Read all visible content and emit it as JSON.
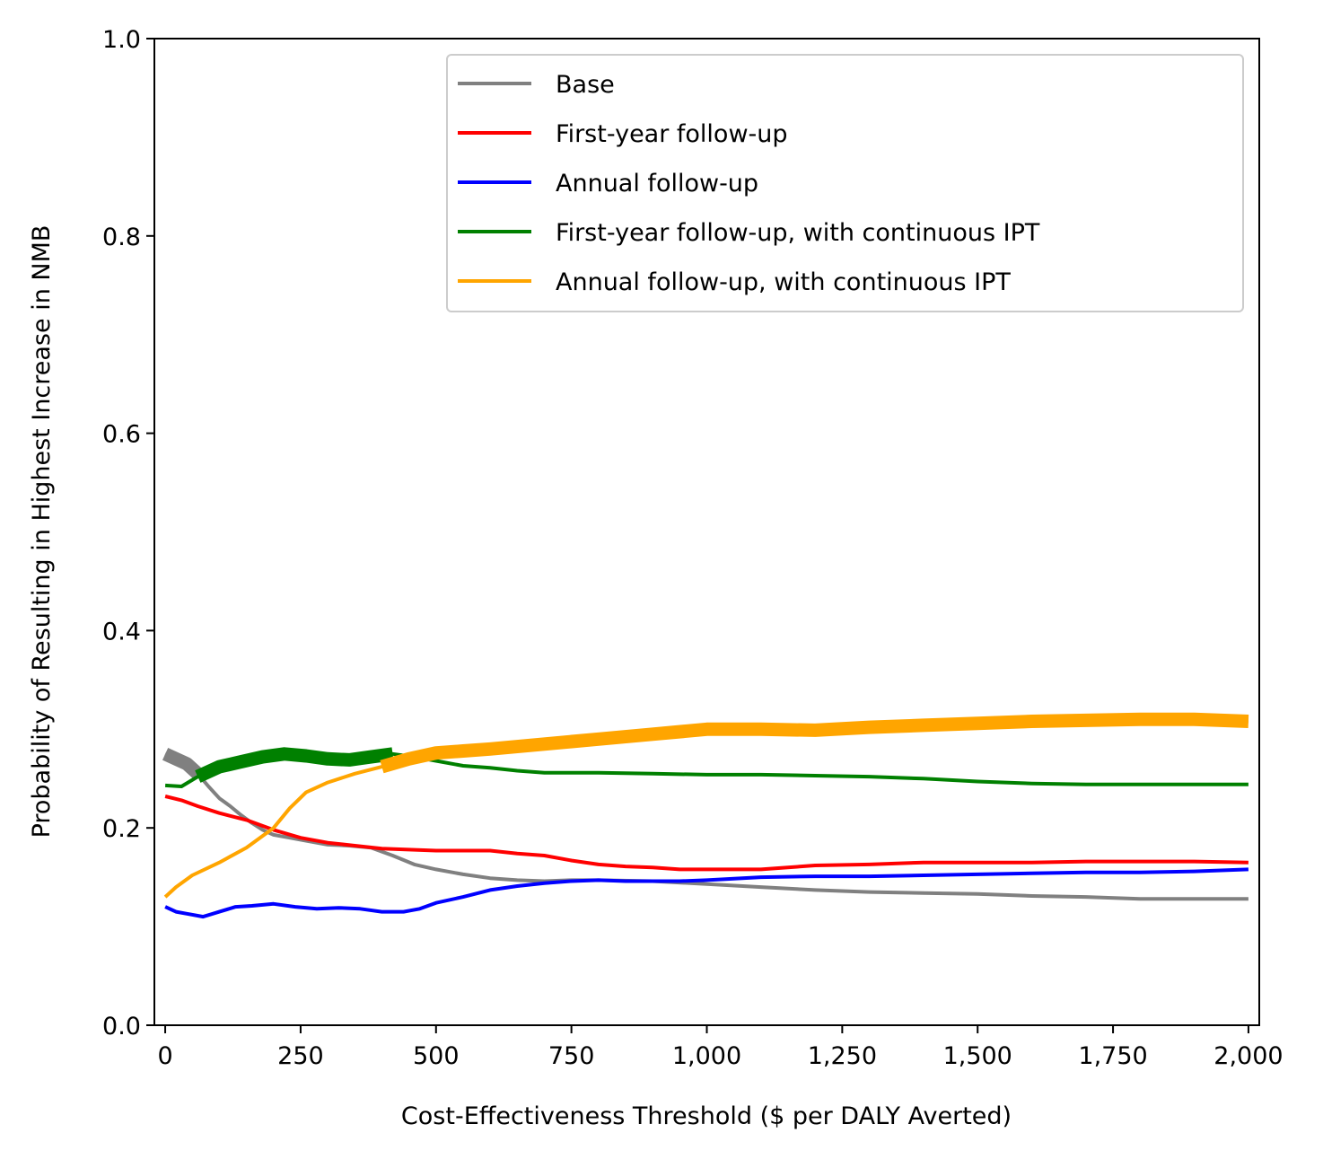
{
  "chart_data": {
    "type": "line",
    "title": "",
    "xlabel": "Cost-Effectiveness Threshold ($ per DALY Averted)",
    "ylabel": "Probability of Resulting in Highest Increase in NMB",
    "xlim": [
      -20,
      2020
    ],
    "ylim": [
      0.0,
      1.0
    ],
    "xticks": [
      0,
      250,
      500,
      750,
      1000,
      1250,
      1500,
      1750,
      2000
    ],
    "xtick_labels": [
      "0",
      "250",
      "500",
      "750",
      "1,000",
      "1,250",
      "1,500",
      "1,750",
      "2,000"
    ],
    "yticks": [
      0.0,
      0.2,
      0.4,
      0.6,
      0.8,
      1.0
    ],
    "ytick_labels": [
      "0.0",
      "0.2",
      "0.4",
      "0.6",
      "0.8",
      "1.0"
    ],
    "grid": false,
    "legend_position": "top-right",
    "series": [
      {
        "name": "Base",
        "color": "#808080",
        "points": [
          [
            0,
            0.275
          ],
          [
            20,
            0.27
          ],
          [
            40,
            0.265
          ],
          [
            60,
            0.255
          ],
          [
            80,
            0.242
          ],
          [
            100,
            0.23
          ],
          [
            120,
            0.222
          ],
          [
            140,
            0.213
          ],
          [
            160,
            0.205
          ],
          [
            180,
            0.198
          ],
          [
            200,
            0.193
          ],
          [
            230,
            0.19
          ],
          [
            260,
            0.187
          ],
          [
            300,
            0.183
          ],
          [
            340,
            0.182
          ],
          [
            380,
            0.18
          ],
          [
            420,
            0.172
          ],
          [
            460,
            0.163
          ],
          [
            500,
            0.158
          ],
          [
            550,
            0.153
          ],
          [
            600,
            0.149
          ],
          [
            650,
            0.147
          ],
          [
            700,
            0.146
          ],
          [
            750,
            0.147
          ],
          [
            800,
            0.147
          ],
          [
            900,
            0.146
          ],
          [
            1000,
            0.143
          ],
          [
            1100,
            0.14
          ],
          [
            1200,
            0.137
          ],
          [
            1300,
            0.135
          ],
          [
            1400,
            0.134
          ],
          [
            1500,
            0.133
          ],
          [
            1600,
            0.131
          ],
          [
            1700,
            0.13
          ],
          [
            1800,
            0.128
          ],
          [
            1900,
            0.128
          ],
          [
            2000,
            0.128
          ]
        ],
        "bold_segments": [
          [
            0,
            60
          ]
        ]
      },
      {
        "name": "First-year follow-up",
        "color": "#ff0000",
        "points": [
          [
            0,
            0.232
          ],
          [
            30,
            0.228
          ],
          [
            60,
            0.222
          ],
          [
            100,
            0.215
          ],
          [
            150,
            0.208
          ],
          [
            200,
            0.198
          ],
          [
            250,
            0.19
          ],
          [
            300,
            0.185
          ],
          [
            350,
            0.182
          ],
          [
            400,
            0.179
          ],
          [
            450,
            0.178
          ],
          [
            500,
            0.177
          ],
          [
            550,
            0.177
          ],
          [
            600,
            0.177
          ],
          [
            650,
            0.174
          ],
          [
            700,
            0.172
          ],
          [
            750,
            0.167
          ],
          [
            800,
            0.163
          ],
          [
            850,
            0.161
          ],
          [
            900,
            0.16
          ],
          [
            950,
            0.158
          ],
          [
            1000,
            0.158
          ],
          [
            1100,
            0.158
          ],
          [
            1200,
            0.162
          ],
          [
            1300,
            0.163
          ],
          [
            1400,
            0.165
          ],
          [
            1500,
            0.165
          ],
          [
            1600,
            0.165
          ],
          [
            1700,
            0.166
          ],
          [
            1800,
            0.166
          ],
          [
            1900,
            0.166
          ],
          [
            2000,
            0.165
          ]
        ],
        "bold_segments": []
      },
      {
        "name": "Annual follow-up",
        "color": "#0000ff",
        "points": [
          [
            0,
            0.12
          ],
          [
            20,
            0.115
          ],
          [
            40,
            0.113
          ],
          [
            70,
            0.11
          ],
          [
            100,
            0.115
          ],
          [
            130,
            0.12
          ],
          [
            160,
            0.121
          ],
          [
            200,
            0.123
          ],
          [
            240,
            0.12
          ],
          [
            280,
            0.118
          ],
          [
            320,
            0.119
          ],
          [
            360,
            0.118
          ],
          [
            400,
            0.115
          ],
          [
            440,
            0.115
          ],
          [
            470,
            0.118
          ],
          [
            500,
            0.124
          ],
          [
            550,
            0.13
          ],
          [
            600,
            0.137
          ],
          [
            650,
            0.141
          ],
          [
            700,
            0.144
          ],
          [
            750,
            0.146
          ],
          [
            800,
            0.147
          ],
          [
            850,
            0.146
          ],
          [
            900,
            0.146
          ],
          [
            950,
            0.146
          ],
          [
            1000,
            0.147
          ],
          [
            1100,
            0.15
          ],
          [
            1200,
            0.151
          ],
          [
            1300,
            0.151
          ],
          [
            1400,
            0.152
          ],
          [
            1500,
            0.153
          ],
          [
            1600,
            0.154
          ],
          [
            1700,
            0.155
          ],
          [
            1800,
            0.155
          ],
          [
            1900,
            0.156
          ],
          [
            2000,
            0.158
          ]
        ],
        "bold_segments": []
      },
      {
        "name": "First-year follow-up, with continuous IPT",
        "color": "#008000",
        "points": [
          [
            0,
            0.243
          ],
          [
            30,
            0.242
          ],
          [
            60,
            0.252
          ],
          [
            100,
            0.262
          ],
          [
            140,
            0.267
          ],
          [
            180,
            0.272
          ],
          [
            220,
            0.275
          ],
          [
            260,
            0.273
          ],
          [
            300,
            0.27
          ],
          [
            340,
            0.269
          ],
          [
            380,
            0.272
          ],
          [
            420,
            0.275
          ],
          [
            460,
            0.272
          ],
          [
            500,
            0.268
          ],
          [
            550,
            0.263
          ],
          [
            600,
            0.261
          ],
          [
            650,
            0.258
          ],
          [
            700,
            0.256
          ],
          [
            800,
            0.256
          ],
          [
            900,
            0.255
          ],
          [
            1000,
            0.254
          ],
          [
            1100,
            0.254
          ],
          [
            1200,
            0.253
          ],
          [
            1300,
            0.252
          ],
          [
            1400,
            0.25
          ],
          [
            1500,
            0.247
          ],
          [
            1600,
            0.245
          ],
          [
            1700,
            0.244
          ],
          [
            1800,
            0.244
          ],
          [
            1900,
            0.244
          ],
          [
            2000,
            0.244
          ]
        ],
        "bold_segments": [
          [
            60,
            420
          ]
        ]
      },
      {
        "name": "Annual follow-up, with continuous IPT",
        "color": "#ffa500",
        "points": [
          [
            0,
            0.13
          ],
          [
            20,
            0.14
          ],
          [
            50,
            0.152
          ],
          [
            100,
            0.165
          ],
          [
            150,
            0.18
          ],
          [
            200,
            0.2
          ],
          [
            230,
            0.22
          ],
          [
            260,
            0.236
          ],
          [
            300,
            0.246
          ],
          [
            350,
            0.255
          ],
          [
            400,
            0.262
          ],
          [
            450,
            0.27
          ],
          [
            500,
            0.276
          ],
          [
            550,
            0.278
          ],
          [
            600,
            0.28
          ],
          [
            700,
            0.285
          ],
          [
            800,
            0.29
          ],
          [
            900,
            0.295
          ],
          [
            1000,
            0.3
          ],
          [
            1100,
            0.3
          ],
          [
            1200,
            0.299
          ],
          [
            1300,
            0.302
          ],
          [
            1400,
            0.304
          ],
          [
            1500,
            0.306
          ],
          [
            1600,
            0.308
          ],
          [
            1700,
            0.309
          ],
          [
            1800,
            0.31
          ],
          [
            1900,
            0.31
          ],
          [
            2000,
            0.308
          ]
        ],
        "bold_segments": [
          [
            400,
            2000
          ]
        ]
      }
    ]
  }
}
